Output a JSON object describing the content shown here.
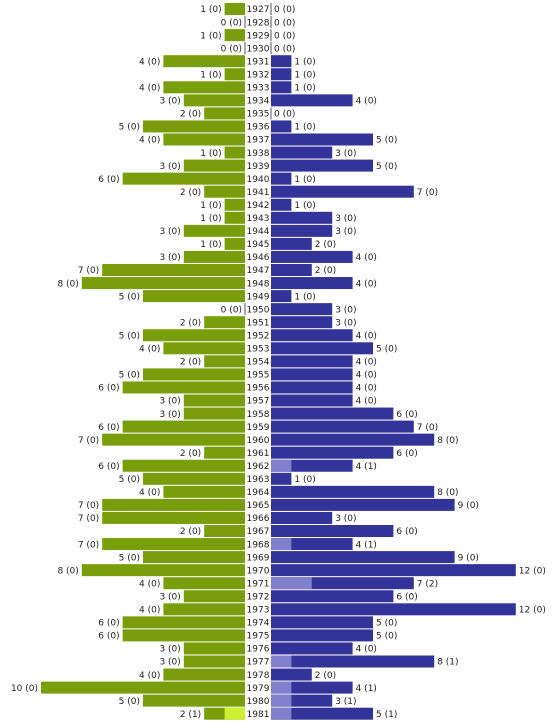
{
  "chart_data": {
    "type": "bar",
    "orientation": "horizontal-diverging",
    "categories": [
      "1927",
      "1928",
      "1929",
      "1930",
      "1931",
      "1932",
      "1933",
      "1934",
      "1935",
      "1936",
      "1937",
      "1938",
      "1939",
      "1940",
      "1941",
      "1942",
      "1943",
      "1944",
      "1945",
      "1946",
      "1947",
      "1948",
      "1949",
      "1950",
      "1951",
      "1952",
      "1953",
      "1954",
      "1955",
      "1956",
      "1957",
      "1958",
      "1959",
      "1960",
      "1961",
      "1962",
      "1963",
      "1964",
      "1965",
      "1966",
      "1967",
      "1968",
      "1969",
      "1970",
      "1971",
      "1972",
      "1973",
      "1974",
      "1975",
      "1976",
      "1977",
      "1978",
      "1979",
      "1980",
      "1981"
    ],
    "series": [
      {
        "side": "left",
        "color": "#7a9e0b",
        "highlight_color": "#ccee33",
        "values": [
          1,
          0,
          1,
          0,
          4,
          1,
          4,
          3,
          2,
          5,
          4,
          1,
          3,
          6,
          2,
          1,
          1,
          3,
          1,
          3,
          7,
          8,
          5,
          0,
          2,
          5,
          4,
          2,
          5,
          6,
          3,
          3,
          6,
          7,
          2,
          6,
          5,
          4,
          7,
          7,
          2,
          7,
          5,
          8,
          4,
          3,
          4,
          6,
          6,
          3,
          3,
          4,
          10,
          5,
          2
        ],
        "highlighted": [
          0,
          0,
          0,
          0,
          0,
          0,
          0,
          0,
          0,
          0,
          0,
          0,
          0,
          0,
          0,
          0,
          0,
          0,
          0,
          0,
          0,
          0,
          0,
          0,
          0,
          0,
          0,
          0,
          0,
          0,
          0,
          0,
          0,
          0,
          0,
          0,
          0,
          0,
          0,
          0,
          0,
          0,
          0,
          0,
          0,
          0,
          0,
          0,
          0,
          0,
          0,
          0,
          0,
          0,
          1
        ]
      },
      {
        "side": "right",
        "color": "#333399",
        "highlight_color": "#8080cc",
        "values": [
          0,
          0,
          0,
          0,
          1,
          1,
          1,
          4,
          0,
          1,
          5,
          3,
          5,
          1,
          7,
          1,
          3,
          3,
          2,
          4,
          2,
          4,
          1,
          3,
          3,
          4,
          5,
          4,
          4,
          4,
          4,
          6,
          7,
          8,
          6,
          4,
          1,
          8,
          9,
          3,
          6,
          4,
          9,
          12,
          7,
          6,
          12,
          5,
          5,
          4,
          8,
          2,
          4,
          3,
          5
        ],
        "highlighted": [
          0,
          0,
          0,
          0,
          0,
          0,
          0,
          0,
          0,
          0,
          0,
          0,
          0,
          0,
          0,
          0,
          0,
          0,
          0,
          0,
          0,
          0,
          0,
          0,
          0,
          0,
          0,
          0,
          0,
          0,
          0,
          0,
          0,
          0,
          0,
          1,
          0,
          0,
          0,
          0,
          0,
          1,
          0,
          0,
          2,
          0,
          0,
          0,
          0,
          0,
          1,
          0,
          1,
          1,
          1
        ]
      }
    ],
    "label_format": "{value} ({highlighted})",
    "xlim": [
      0,
      12
    ],
    "grid": false,
    "legend": "none"
  }
}
